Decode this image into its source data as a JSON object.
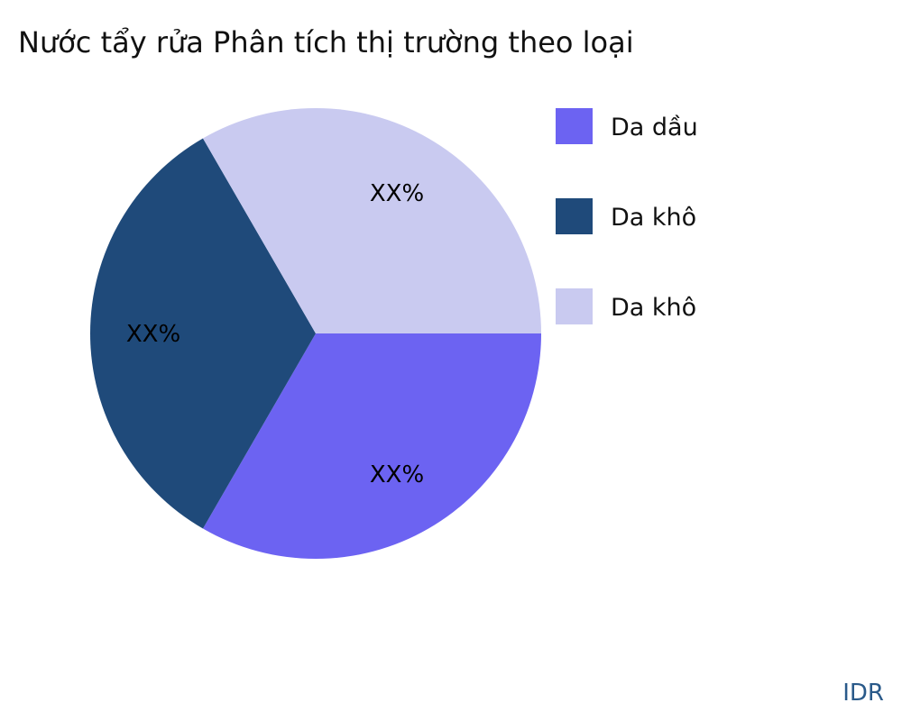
{
  "chart_data": {
    "type": "pie",
    "title": "Nước tẩy rửa Phân tích thị trường theo loại",
    "categories": [
      "Da dầu",
      "Da khô",
      "Da khô"
    ],
    "values": [
      33.33,
      33.33,
      33.33
    ],
    "data_labels": [
      "XX%",
      "XX%",
      "XX%"
    ],
    "colors": [
      "#6c63f2",
      "#1f4a7a",
      "#c9caf0"
    ],
    "start_angle_deg": 0,
    "direction": "clockwise",
    "legend_position": "right"
  },
  "watermark": "IDR"
}
